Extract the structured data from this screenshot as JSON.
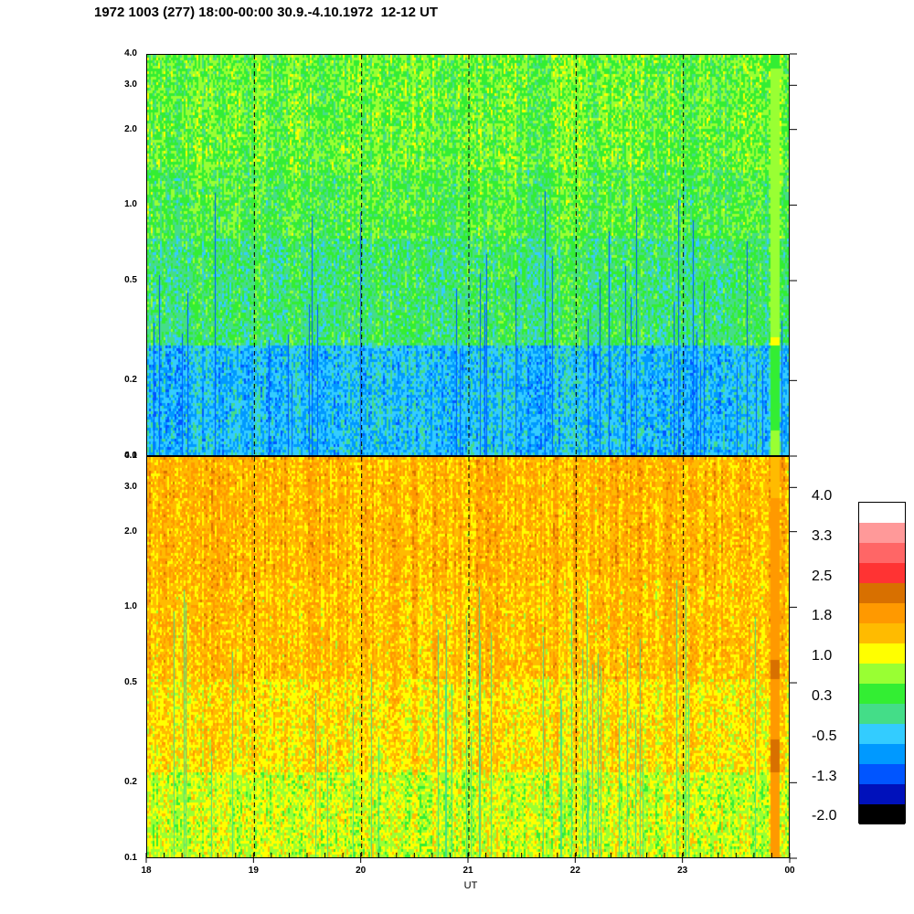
{
  "title": "1972 1003 (277) 18:00-00:00 30.9.-4.10.1972  12-12 UT",
  "chart_data": [
    {
      "type": "heatmap",
      "panel": "top",
      "yaxis_scale": "log",
      "ylim": [
        0.1,
        4.0
      ],
      "yticks": [
        "4.0",
        "3.0",
        "2.0",
        "1.0",
        "0.5",
        "0.2",
        "0.1"
      ],
      "xlim": [
        18,
        24
      ],
      "xticks": [
        "18",
        "19",
        "20",
        "21",
        "22",
        "23",
        "00"
      ],
      "xlabel": "UT",
      "dashed_hour_lines": [
        19,
        20,
        21,
        22,
        23
      ],
      "dominant_values": "low frequencies about -0.5 to 0, mid frequencies about 0.3, high frequencies about 0.3 to 1.0"
    },
    {
      "type": "heatmap",
      "panel": "bottom",
      "yaxis_scale": "log",
      "ylim": [
        0.1,
        4.0
      ],
      "yticks": [
        "4.0",
        "3.0",
        "2.0",
        "1.0",
        "0.5",
        "0.2",
        "0.1"
      ],
      "xlim": [
        18,
        24
      ],
      "xticks": [
        "18",
        "19",
        "20",
        "21",
        "22",
        "23",
        "00"
      ],
      "xlabel": "UT",
      "dashed_hour_lines": [
        19,
        20,
        21,
        22,
        23
      ],
      "dominant_values": "low frequencies about 0.8 to 1.2, mid and high frequencies about 1.5 to 2.0"
    }
  ],
  "colorbar": {
    "labels": [
      "4.0",
      "3.3",
      "2.5",
      "1.8",
      "1.0",
      "0.3",
      "-0.5",
      "-1.3",
      "-2.0"
    ],
    "colors": [
      "#ffffff",
      "#ff9999",
      "#ff6666",
      "#ff3333",
      "#d87000",
      "#ff9900",
      "#ffbb00",
      "#ffff00",
      "#99ff33",
      "#33ee33",
      "#44dd88",
      "#33ccff",
      "#0099ff",
      "#0055ff",
      "#0011bb",
      "#000000"
    ]
  }
}
